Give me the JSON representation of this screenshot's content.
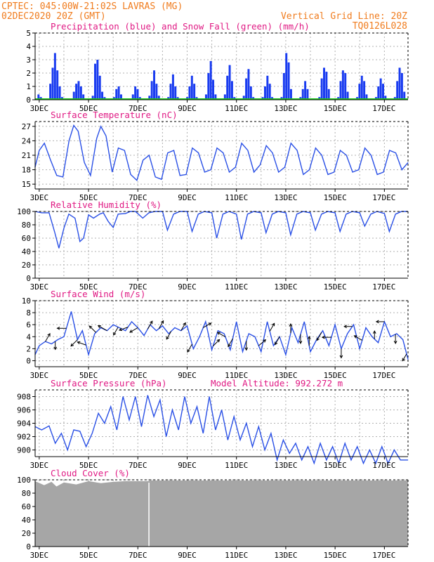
{
  "header": {
    "left_line1": "CPTEC:   045:00W-21:02S  LAVRAS (MG)",
    "left_line2": "02DEC2020 20Z (GMT)",
    "right_line1": "Vertical Grid Line: 20Z",
    "right_line2": "TQ0126L028"
  },
  "colors": {
    "header": "#f07c1e",
    "panel_title": "#e01a84",
    "precip": "#1a3cf0",
    "snow": "#1ec81e",
    "line": "#2a50e6",
    "wind_arrow": "#000000",
    "cloud": "#a6a6a6"
  },
  "x_axis": {
    "ticks": [
      "3DEC",
      "5DEC",
      "7DEC",
      "9DEC",
      "11DEC",
      "13DEC",
      "15DEC",
      "17DEC"
    ],
    "range_days": [
      2.8333,
      17.9583
    ]
  },
  "chart_data": [
    {
      "id": "precip",
      "type": "bar",
      "title": "Precipitation (blue) and Snow Fall (green) (mm/h)",
      "ylim": [
        0,
        5
      ],
      "yticks": [
        "0",
        "1",
        "2",
        "3",
        "4",
        "5"
      ],
      "series": [
        {
          "name": "Precipitation",
          "values": [
            0.0,
            0.4,
            0.2,
            0.0,
            0.0,
            0.0,
            1.2,
            2.4,
            3.5,
            2.2,
            1.0,
            0.2,
            0.0,
            0.0,
            0.0,
            0.1,
            0.6,
            1.2,
            1.4,
            1.0,
            0.4,
            0.0,
            0.0,
            0.1,
            0.3,
            2.7,
            3.0,
            1.8,
            0.6,
            0.2,
            0.0,
            0.0,
            0.0,
            0.2,
            0.8,
            1.0,
            0.4,
            0.0,
            0.0,
            0.0,
            0.1,
            0.4,
            1.0,
            0.8,
            0.2,
            0.0,
            0.0,
            0.0,
            0.3,
            1.4,
            2.2,
            1.2,
            0.3,
            0.0,
            0.0,
            0.0,
            0.2,
            1.2,
            1.9,
            1.0,
            0.2,
            0.0,
            0.0,
            0.0,
            0.2,
            1.0,
            1.8,
            1.2,
            0.2,
            0.0,
            0.0,
            0.0,
            0.4,
            2.0,
            2.9,
            1.5,
            0.4,
            0.0,
            0.0,
            0.0,
            0.4,
            1.8,
            2.6,
            1.4,
            0.2,
            0.0,
            0.0,
            0.0,
            0.3,
            1.6,
            2.3,
            1.0,
            0.2,
            0.0,
            0.0,
            0.0,
            0.2,
            1.0,
            1.8,
            1.2,
            0.2,
            0.0,
            0.0,
            0.0,
            0.2,
            2.0,
            3.5,
            2.8,
            0.8,
            0.0,
            0.0,
            0.0,
            0.2,
            0.8,
            1.4,
            0.8,
            0.1,
            0.0,
            0.0,
            0.0,
            0.2,
            1.6,
            2.4,
            2.1,
            0.8,
            0.0,
            0.0,
            0.0,
            0.2,
            1.4,
            2.2,
            2.0,
            0.6,
            0.0,
            0.0,
            0.0,
            0.2,
            1.2,
            1.8,
            1.4,
            0.4,
            0.0,
            0.0,
            0.0,
            0.2,
            1.0,
            1.6,
            1.2,
            0.3,
            0.0,
            0.0,
            0.0,
            0.2,
            1.4,
            2.4,
            2.0,
            0.6,
            0.0
          ]
        },
        {
          "name": "Snow Fall",
          "values": [
            0
          ]
        }
      ]
    },
    {
      "id": "temperature",
      "type": "line",
      "title": "Surface Temperature (nC)",
      "ylim": [
        14,
        28
      ],
      "yticks": [
        "15",
        "18",
        "21",
        "24",
        "27"
      ],
      "yticks_values": [
        15,
        18,
        21,
        24,
        27
      ],
      "series": [
        {
          "name": "Surface Temperature",
          "x": [
            2.83,
            3.0,
            3.21,
            3.46,
            3.71,
            3.96,
            4.21,
            4.4,
            4.58,
            4.83,
            5.08,
            5.33,
            5.5,
            5.71,
            5.96,
            6.21,
            6.46,
            6.71,
            6.96,
            7.21,
            7.46,
            7.71,
            7.96,
            8.21,
            8.46,
            8.71,
            8.96,
            9.21,
            9.46,
            9.71,
            9.96,
            10.21,
            10.46,
            10.71,
            10.96,
            11.21,
            11.46,
            11.71,
            11.96,
            12.21,
            12.46,
            12.71,
            12.96,
            13.21,
            13.46,
            13.71,
            13.96,
            14.21,
            14.46,
            14.71,
            14.96,
            15.21,
            15.46,
            15.71,
            15.96,
            16.21,
            16.46,
            16.71,
            16.96,
            17.21,
            17.46,
            17.71,
            17.96
          ],
          "y": [
            18.5,
            22.0,
            23.5,
            20.0,
            16.8,
            16.5,
            24.0,
            27.2,
            26.0,
            19.5,
            16.8,
            24.5,
            27.0,
            25.0,
            17.5,
            22.5,
            22.0,
            17.0,
            15.8,
            20.0,
            21.0,
            16.5,
            16.0,
            21.5,
            22.0,
            16.8,
            17.0,
            22.5,
            21.5,
            17.5,
            18.0,
            22.5,
            21.5,
            17.5,
            18.5,
            23.5,
            22.0,
            17.5,
            19.0,
            23.0,
            21.5,
            17.5,
            18.5,
            23.5,
            22.0,
            17.0,
            18.0,
            22.5,
            21.0,
            17.0,
            17.5,
            22.0,
            21.0,
            17.5,
            18.0,
            22.5,
            21.0,
            17.0,
            17.5,
            22.0,
            21.5,
            18.0,
            19.5
          ]
        }
      ]
    },
    {
      "id": "humidity",
      "type": "line",
      "title": "Relative Humidity (%)",
      "ylim": [
        0,
        100
      ],
      "yticks": [
        "0",
        "20",
        "40",
        "60",
        "80",
        "100"
      ],
      "yticks_values": [
        0,
        20,
        40,
        60,
        80,
        100
      ],
      "series": [
        {
          "name": "Relative Humidity",
          "x": [
            2.83,
            3.1,
            3.4,
            3.62,
            3.8,
            4.0,
            4.2,
            4.45,
            4.65,
            4.8,
            5.0,
            5.2,
            5.45,
            5.6,
            5.8,
            6.0,
            6.2,
            6.5,
            6.7,
            6.9,
            7.2,
            7.45,
            7.7,
            8.0,
            8.2,
            8.45,
            8.7,
            9.0,
            9.2,
            9.45,
            9.7,
            10.0,
            10.2,
            10.45,
            10.7,
            11.0,
            11.2,
            11.45,
            11.7,
            12.0,
            12.2,
            12.45,
            12.7,
            13.0,
            13.2,
            13.45,
            13.7,
            14.0,
            14.2,
            14.45,
            14.7,
            15.0,
            15.2,
            15.45,
            15.7,
            16.0,
            16.2,
            16.45,
            16.7,
            17.0,
            17.2,
            17.45,
            17.7,
            17.96
          ],
          "y": [
            100,
            98,
            98,
            70,
            45,
            75,
            96,
            90,
            55,
            60,
            95,
            90,
            96,
            98,
            85,
            76,
            96,
            97,
            100,
            100,
            90,
            98,
            100,
            100,
            72,
            96,
            100,
            100,
            70,
            96,
            100,
            98,
            60,
            96,
            100,
            96,
            58,
            96,
            100,
            98,
            68,
            96,
            100,
            98,
            65,
            96,
            100,
            98,
            72,
            96,
            100,
            98,
            70,
            96,
            100,
            98,
            78,
            96,
            100,
            97,
            70,
            96,
            100,
            100
          ]
        }
      ]
    },
    {
      "id": "wind",
      "type": "line",
      "title": "Surface Wind (m/s)",
      "ylim": [
        -1,
        10
      ],
      "yticks": [
        "0",
        "2",
        "4",
        "6",
        "8",
        "10"
      ],
      "yticks_values": [
        0,
        2,
        4,
        6,
        8,
        10
      ],
      "series": [
        {
          "name": "Surface Wind",
          "x": [
            2.83,
            3.0,
            3.25,
            3.5,
            3.75,
            4.0,
            4.3,
            4.55,
            4.75,
            5.0,
            5.25,
            5.5,
            5.75,
            6.0,
            6.25,
            6.5,
            6.75,
            7.0,
            7.25,
            7.5,
            7.75,
            8.0,
            8.25,
            8.5,
            8.75,
            9.0,
            9.25,
            9.5,
            9.75,
            10.0,
            10.25,
            10.5,
            10.75,
            11.0,
            11.25,
            11.5,
            11.75,
            12.0,
            12.25,
            12.5,
            12.75,
            13.0,
            13.25,
            13.5,
            13.75,
            14.0,
            14.25,
            14.5,
            14.75,
            15.0,
            15.25,
            15.5,
            15.75,
            16.0,
            16.25,
            16.5,
            16.75,
            17.0,
            17.25,
            17.5,
            17.75,
            17.96
          ],
          "y": [
            1.0,
            2.5,
            3.2,
            2.8,
            3.5,
            4.0,
            8.2,
            3.5,
            5.0,
            1.0,
            4.5,
            5.5,
            5.0,
            6.0,
            5.5,
            5.0,
            6.5,
            5.5,
            4.2,
            6.0,
            5.0,
            5.8,
            4.5,
            5.5,
            5.0,
            5.8,
            2.0,
            4.0,
            6.5,
            1.8,
            5.0,
            4.5,
            1.8,
            6.5,
            1.5,
            4.5,
            4.0,
            1.5,
            6.5,
            2.5,
            4.0,
            1.0,
            5.5,
            3.0,
            6.5,
            1.5,
            3.5,
            5.0,
            2.5,
            6.0,
            2.0,
            4.5,
            6.0,
            2.0,
            5.5,
            4.0,
            3.0,
            6.5,
            4.0,
            4.5,
            3.5,
            0.2
          ]
        }
      ],
      "arrows": [
        {
          "x": 3.25,
          "dir": 60,
          "len": 4
        },
        {
          "x": 3.65,
          "dir": 270,
          "len": 3
        },
        {
          "x": 4.1,
          "dir": 180,
          "len": 4
        },
        {
          "x": 4.55,
          "dir": 225,
          "len": 4
        },
        {
          "x": 4.9,
          "dir": 160,
          "len": 4
        },
        {
          "x": 5.3,
          "dir": 135,
          "len": 4
        },
        {
          "x": 5.75,
          "dir": 150,
          "len": 5
        },
        {
          "x": 6.2,
          "dir": 240,
          "len": 4
        },
        {
          "x": 6.6,
          "dir": 200,
          "len": 4
        },
        {
          "x": 7.0,
          "dir": 210,
          "len": 4
        },
        {
          "x": 7.4,
          "dir": 60,
          "len": 4
        },
        {
          "x": 7.85,
          "dir": 60,
          "len": 4
        },
        {
          "x": 8.35,
          "dir": 240,
          "len": 4
        },
        {
          "x": 8.75,
          "dir": 60,
          "len": 4
        },
        {
          "x": 9.2,
          "dir": 240,
          "len": 4
        },
        {
          "x": 9.65,
          "dir": 30,
          "len": 4
        },
        {
          "x": 10.05,
          "dir": 45,
          "len": 4
        },
        {
          "x": 10.55,
          "dir": 150,
          "len": 4
        },
        {
          "x": 10.85,
          "dir": 240,
          "len": 4
        },
        {
          "x": 11.4,
          "dir": 270,
          "len": 4
        },
        {
          "x": 11.9,
          "dir": 40,
          "len": 4
        },
        {
          "x": 12.35,
          "dir": 60,
          "len": 4
        },
        {
          "x": 12.75,
          "dir": 240,
          "len": 4
        },
        {
          "x": 13.2,
          "dir": 90,
          "len": 4
        },
        {
          "x": 13.6,
          "dir": 270,
          "len": 4
        },
        {
          "x": 13.95,
          "dir": 90,
          "len": 4
        },
        {
          "x": 14.45,
          "dir": 240,
          "len": 4
        },
        {
          "x": 14.85,
          "dir": 180,
          "len": 4
        },
        {
          "x": 15.25,
          "dir": 270,
          "len": 4
        },
        {
          "x": 15.7,
          "dir": 180,
          "len": 3
        },
        {
          "x": 16.1,
          "dir": 150,
          "len": 4
        },
        {
          "x": 16.6,
          "dir": 90,
          "len": 3
        },
        {
          "x": 17.0,
          "dir": 180,
          "len": 3
        },
        {
          "x": 17.45,
          "dir": 270,
          "len": 4
        },
        {
          "x": 17.9,
          "dir": 240,
          "len": 3
        }
      ]
    },
    {
      "id": "pressure",
      "type": "line",
      "title": "Surface Pressure (hPa)",
      "subtitle": "Model Altitude: 992.272 m",
      "ylim": [
        899,
        909
      ],
      "yticks": [
        "900",
        "902",
        "904",
        "906",
        "908"
      ],
      "yticks_values": [
        900,
        902,
        904,
        906,
        908
      ],
      "series": [
        {
          "name": "Surface Pressure",
          "x": [
            2.83,
            3.1,
            3.4,
            3.65,
            3.9,
            4.15,
            4.4,
            4.65,
            4.9,
            5.15,
            5.4,
            5.65,
            5.9,
            6.15,
            6.4,
            6.65,
            6.9,
            7.15,
            7.4,
            7.65,
            7.9,
            8.15,
            8.4,
            8.65,
            8.9,
            9.15,
            9.4,
            9.65,
            9.9,
            10.15,
            10.4,
            10.65,
            10.9,
            11.15,
            11.4,
            11.65,
            11.9,
            12.15,
            12.4,
            12.65,
            12.9,
            13.15,
            13.4,
            13.65,
            13.9,
            14.15,
            14.4,
            14.65,
            14.9,
            15.15,
            15.4,
            15.65,
            15.9,
            16.15,
            16.4,
            16.65,
            16.9,
            17.15,
            17.4,
            17.65,
            17.96
          ],
          "y": [
            903.5,
            903.0,
            903.6,
            901.0,
            902.5,
            900.0,
            903.0,
            902.8,
            900.5,
            902.5,
            905.5,
            904.0,
            906.5,
            903.0,
            908.0,
            904.5,
            908.0,
            903.5,
            908.2,
            905.0,
            907.5,
            902.0,
            906.0,
            903.0,
            908.0,
            904.0,
            906.5,
            902.5,
            908.0,
            903.0,
            906.0,
            901.5,
            905.0,
            901.5,
            904.0,
            900.5,
            903.5,
            900.0,
            902.5,
            898.5,
            901.5,
            899.5,
            901.0,
            898.5,
            900.5,
            898.0,
            901.0,
            898.5,
            900.5,
            898.0,
            901.0,
            898.5,
            900.5,
            898.0,
            900.0,
            898.0,
            900.5,
            898.0,
            900.0,
            898.5,
            898.5
          ]
        }
      ]
    },
    {
      "id": "cloud",
      "type": "area",
      "title": "Cloud Cover (%)",
      "ylim": [
        0,
        100
      ],
      "yticks": [
        "0",
        "20",
        "40",
        "60",
        "80",
        "100"
      ],
      "yticks_values": [
        0,
        20,
        40,
        60,
        80,
        100
      ],
      "series": [
        {
          "name": "Cloud Cover",
          "x": [
            2.83,
            3.2,
            3.5,
            3.7,
            4.0,
            4.5,
            5.0,
            5.5,
            6.0,
            6.5,
            7.0,
            7.4,
            7.5,
            8.0,
            9.0,
            10.0,
            11.0,
            12.0,
            13.0,
            14.0,
            15.0,
            16.0,
            17.0,
            17.96
          ],
          "y": [
            98,
            92,
            97,
            90,
            96,
            93,
            98,
            95,
            97,
            98,
            98,
            98,
            99,
            99,
            99,
            99,
            99,
            99,
            99,
            99,
            99,
            99,
            99,
            99
          ]
        }
      ]
    }
  ]
}
